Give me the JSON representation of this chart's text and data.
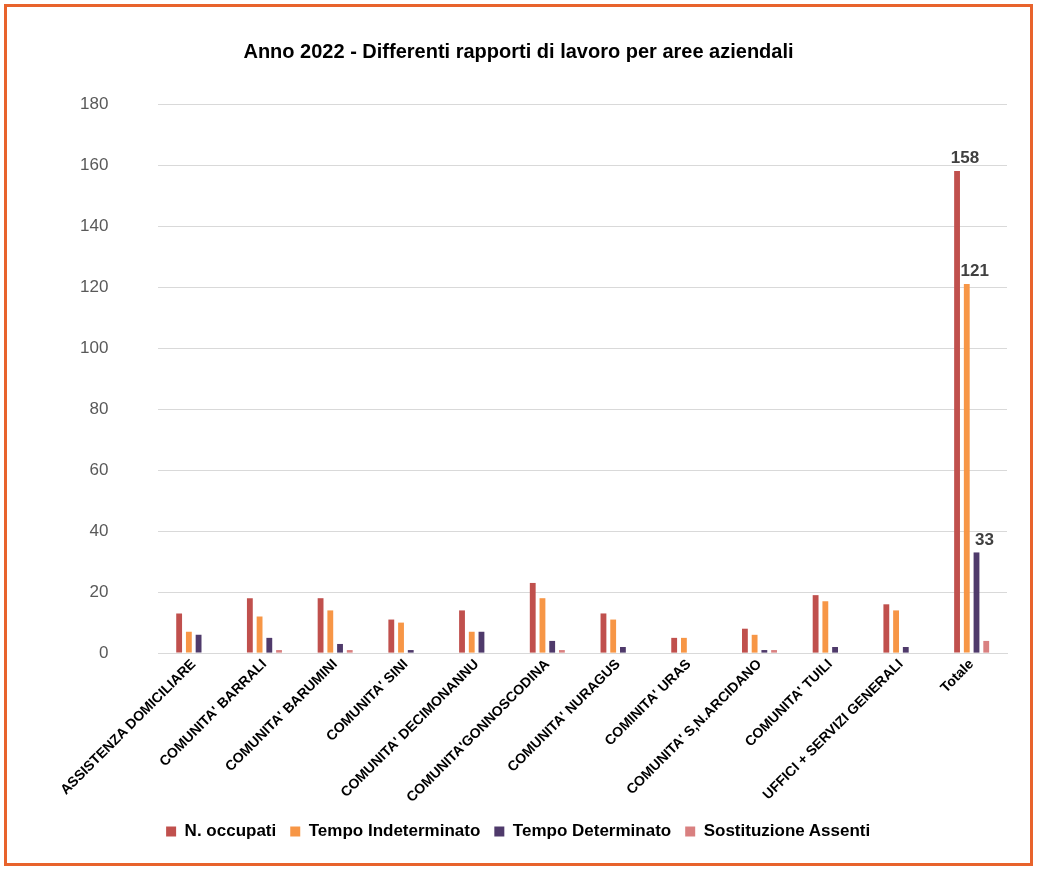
{
  "chart_data": {
    "type": "bar",
    "title": "Anno 2022 - Differenti rapporti di lavoro per aree aziendali",
    "categories": [
      "ASSISTENZA DOMICILIARE",
      "COMUNITA' BARRALI",
      "COMUNITA' BARUMINI",
      "COMUNITA' SINI",
      "COMUNITA' DECIMONANNU",
      "COMUNITA'GONNOSCODINA",
      "COMUNITA' NURAGUS",
      "COMINITA' URAS",
      "COMUNITA' S,N.ARCIDANO",
      "COMUNITA' TUILI",
      "UFFICI + SERVIZI GENERALI",
      "Totale"
    ],
    "series": [
      {
        "name": "N. occupati",
        "color": "#c0504d",
        "values": [
          13,
          18,
          18,
          11,
          14,
          23,
          13,
          5,
          8,
          19,
          16,
          158
        ],
        "value_labels": [
          null,
          null,
          null,
          null,
          null,
          null,
          null,
          null,
          null,
          null,
          null,
          "158"
        ]
      },
      {
        "name": "Tempo Indeterminato",
        "color": "#f79646",
        "values": [
          7,
          12,
          14,
          10,
          7,
          18,
          11,
          5,
          6,
          17,
          14,
          121
        ],
        "value_labels": [
          null,
          null,
          null,
          null,
          null,
          null,
          null,
          null,
          null,
          null,
          null,
          "121"
        ]
      },
      {
        "name": "Tempo Determinato",
        "color": "#4f3a6b",
        "values": [
          6,
          5,
          3,
          1,
          7,
          4,
          2,
          0,
          1,
          2,
          2,
          33
        ],
        "value_labels": [
          null,
          null,
          null,
          null,
          null,
          null,
          null,
          null,
          null,
          null,
          null,
          "33"
        ]
      },
      {
        "name": "Sostituzione Assenti",
        "color": "#d98080",
        "values": [
          0,
          1,
          1,
          0,
          0,
          1,
          0,
          0,
          1,
          0,
          0,
          4
        ]
      }
    ],
    "ylim": [
      0,
      180
    ],
    "yticks": [
      0,
      20,
      40,
      60,
      80,
      100,
      120,
      140,
      160,
      180
    ],
    "grid": "y",
    "legend": "bottom"
  }
}
